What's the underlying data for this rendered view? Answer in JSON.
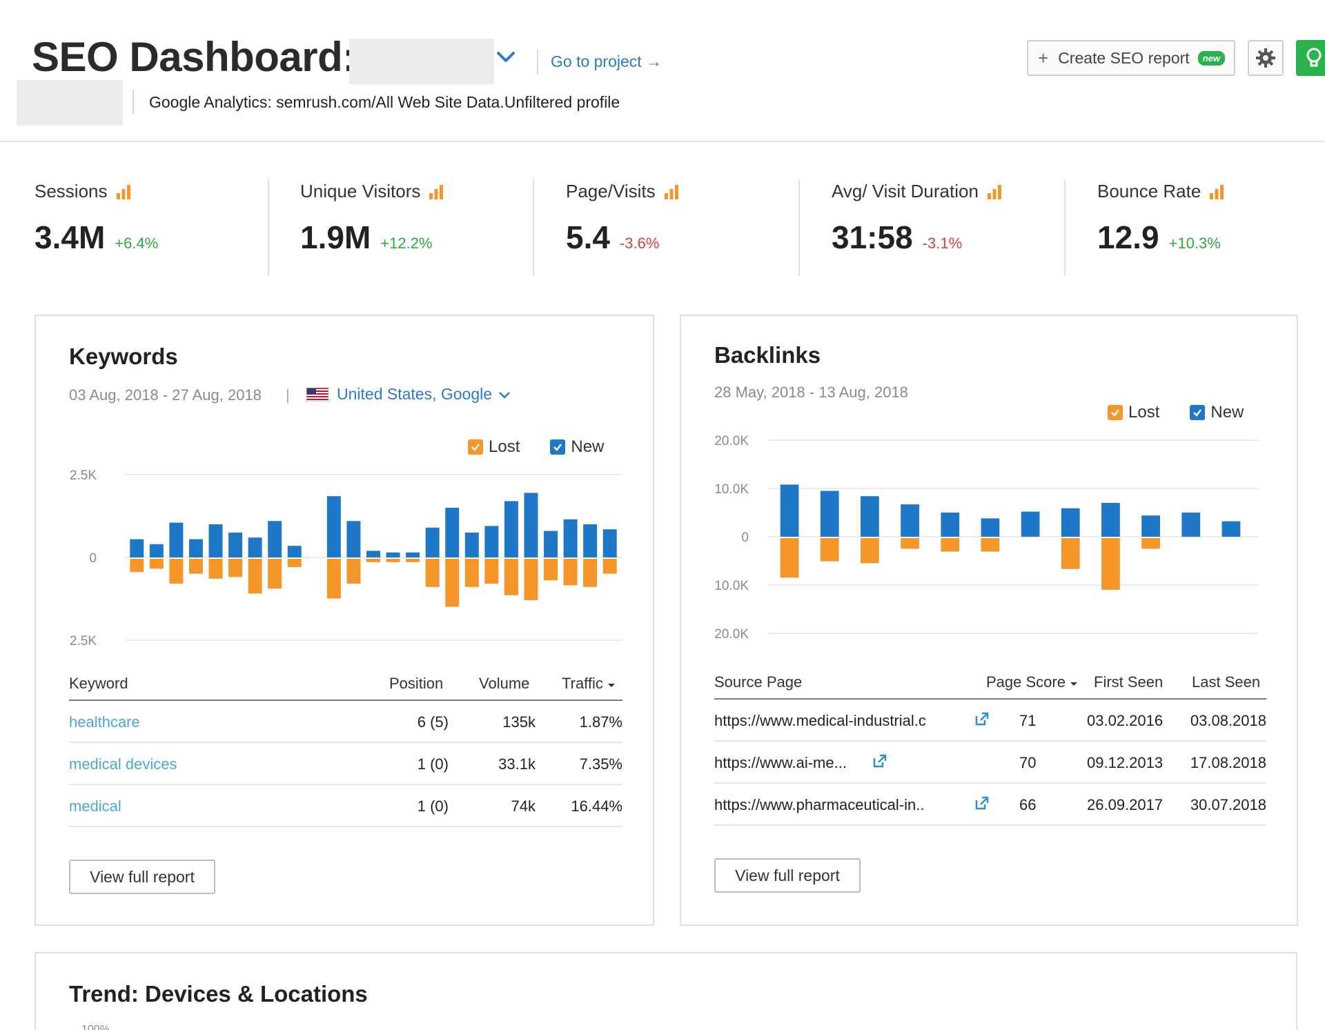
{
  "header": {
    "title": "SEO Dashboard:",
    "goto_label": "Go to project →",
    "ga_label": "Google Analytics: semrush.com/All Web Site Data.Unfiltered profile",
    "create_report_label": "Create SEO report",
    "new_badge": "new"
  },
  "metrics": [
    {
      "label": "Sessions",
      "value": "3.4M",
      "change": "+6.4%",
      "trend": "up"
    },
    {
      "label": "Unique Visitors",
      "value": "1.9M",
      "change": "+12.2%",
      "trend": "up"
    },
    {
      "label": "Page/Visits",
      "value": "5.4",
      "change": "-3.6%",
      "trend": "down"
    },
    {
      "label": "Avg/ Visit Duration",
      "value": "31:58",
      "change": "-3.1%",
      "trend": "down"
    },
    {
      "label": "Bounce Rate",
      "value": "12.9",
      "change": "+10.3%",
      "trend": "up"
    }
  ],
  "colors": {
    "new": "#1f77c8",
    "lost": "#f5962a",
    "positive": "#2eaa3f",
    "negative": "#e23c3c",
    "link": "#2a7bc9",
    "accent_green": "#2bb24c"
  },
  "keywords": {
    "title": "Keywords",
    "date_range": "03 Aug, 2018 - 27 Aug, 2018",
    "separator": "|",
    "country": "United States, Google",
    "legend_lost": "Lost",
    "legend_new": "New",
    "columns": [
      "Keyword",
      "Position",
      "Volume",
      "Traffic"
    ],
    "rows": [
      {
        "keyword": "healthcare",
        "position": "6 (5)",
        "volume": "135k",
        "traffic": "1.87%"
      },
      {
        "keyword": "medical devices",
        "position": "1 (0)",
        "volume": "33.1k",
        "traffic": "7.35%"
      },
      {
        "keyword": "medical",
        "position": "1 (0)",
        "volume": "74k",
        "traffic": "16.44%"
      }
    ],
    "view_full_report": "View full report"
  },
  "backlinks": {
    "title": "Backlinks",
    "date_range": "28 May, 2018 - 13 Aug, 2018",
    "legend_lost": "Lost",
    "legend_new": "New",
    "columns": [
      "Source Page",
      "Page Score",
      "First Seen",
      "Last Seen"
    ],
    "rows": [
      {
        "source": "https://www.medical-industrial.c",
        "score": "71",
        "first_seen": "03.02.2016",
        "last_seen": "03.08.2018"
      },
      {
        "source": "https://www.ai-me...",
        "score": "70",
        "first_seen": "09.12.2013",
        "last_seen": "17.08.2018"
      },
      {
        "source": "https://www.pharmaceutical-in..",
        "score": "66",
        "first_seen": "26.09.2017",
        "last_seen": "30.07.2018"
      }
    ],
    "view_full_report": "View full report"
  },
  "trend": {
    "title": "Trend: Devices & Locations",
    "axis_top": "100%"
  },
  "chart_data": [
    {
      "type": "bar",
      "title": "Keywords",
      "y_tick_labels": [
        "2.5K",
        "0",
        "2.5K"
      ],
      "ylim": [
        -2500,
        2500
      ],
      "series": [
        {
          "name": "New",
          "values": [
            550,
            400,
            1050,
            550,
            1000,
            750,
            600,
            1100,
            350,
            0,
            1850,
            1100,
            200,
            150,
            150,
            900,
            1500,
            750,
            950,
            1700,
            1950,
            800,
            1150,
            1000,
            850
          ]
        },
        {
          "name": "Lost",
          "values": [
            -400,
            -300,
            -750,
            -450,
            -600,
            -550,
            -1050,
            -900,
            -250,
            0,
            -1200,
            -750,
            -100,
            -100,
            -100,
            -850,
            -1450,
            -850,
            -750,
            -1100,
            -1250,
            -650,
            -800,
            -850,
            -450
          ]
        }
      ]
    },
    {
      "type": "bar",
      "title": "Backlinks",
      "y_tick_labels": [
        "20.0K",
        "10.0K",
        "0",
        "10.0K",
        "20.0K"
      ],
      "ylim": [
        -20000,
        20000
      ],
      "series": [
        {
          "name": "New",
          "values": [
            10800,
            9500,
            8400,
            6700,
            5000,
            3800,
            5200,
            5900,
            7000,
            4400,
            5000,
            3200
          ]
        },
        {
          "name": "Lost",
          "values": [
            -8200,
            -4800,
            -5200,
            -2200,
            -2800,
            -2800,
            0,
            -6400,
            -10700,
            -2200,
            0,
            0
          ]
        }
      ]
    }
  ]
}
